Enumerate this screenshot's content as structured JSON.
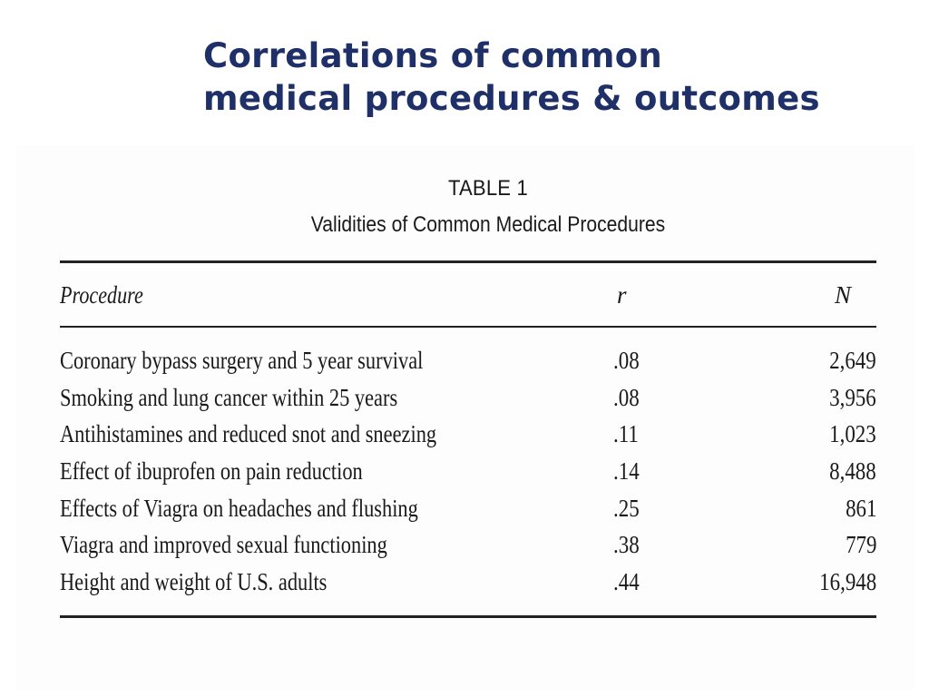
{
  "slide": {
    "title_line1": "Correlations of common",
    "title_line2": "medical procedures & outcomes"
  },
  "table": {
    "number": "TABLE 1",
    "title": "Validities of Common Medical Procedures",
    "headers": {
      "procedure": "Procedure",
      "r": "r",
      "n": "N"
    },
    "rows": [
      {
        "procedure": "Coronary bypass surgery and 5 year survival",
        "r": ".08",
        "n": "2,649"
      },
      {
        "procedure": "Smoking and lung cancer within 25 years",
        "r": ".08",
        "n": "3,956"
      },
      {
        "procedure": "Antihistamines and reduced snot and sneezing",
        "r": ".11",
        "n": "1,023"
      },
      {
        "procedure": "Effect of ibuprofen on pain reduction",
        "r": ".14",
        "n": "8,488"
      },
      {
        "procedure": "Effects of Viagra on headaches and flushing",
        "r": ".25",
        "n": "861"
      },
      {
        "procedure": "Viagra and improved sexual functioning",
        "r": ".38",
        "n": "779"
      },
      {
        "procedure": "Height and weight of U.S. adults",
        "r": ".44",
        "n": "16,948"
      }
    ]
  },
  "colors": {
    "title": "#1f2f67",
    "text": "#1a1a1a"
  }
}
